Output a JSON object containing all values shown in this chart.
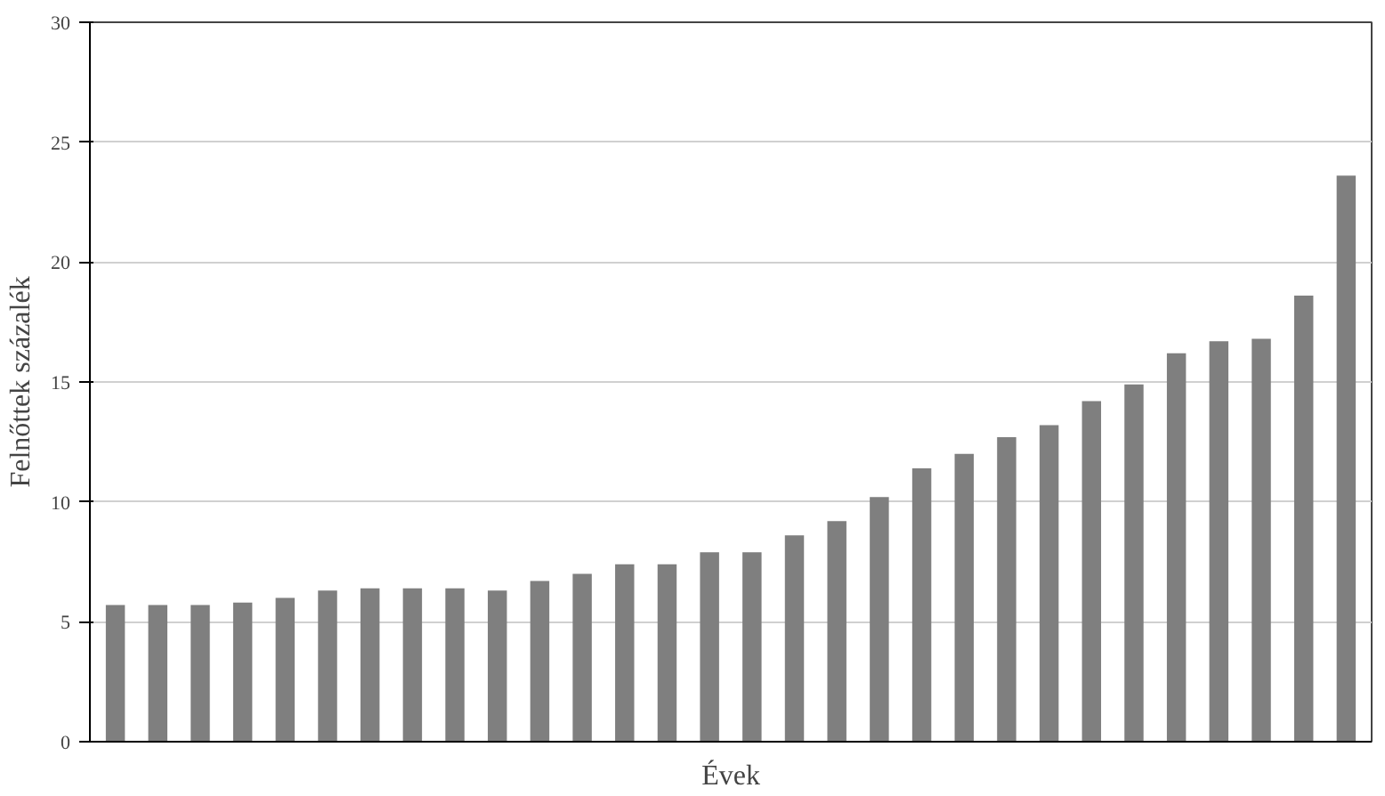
{
  "chart_data": {
    "type": "bar",
    "xlabel": "Évek",
    "ylabel": "Felnőttek százalék",
    "categories": [
      null,
      null,
      null,
      null,
      null,
      null,
      null,
      null,
      null,
      null,
      null,
      null,
      null,
      null,
      null,
      null,
      null,
      null,
      null,
      null,
      null,
      null,
      null,
      null,
      null,
      null,
      null,
      null,
      null,
      null
    ],
    "values": [
      5.7,
      5.7,
      5.7,
      5.8,
      6.0,
      6.3,
      6.4,
      6.4,
      6.4,
      6.3,
      6.7,
      7.0,
      7.4,
      7.4,
      7.9,
      7.9,
      8.6,
      9.2,
      10.2,
      11.4,
      12.0,
      12.7,
      13.2,
      14.2,
      14.9,
      16.2,
      16.7,
      16.8,
      18.6,
      23.6
    ],
    "color": "#7f7f7f",
    "ylim": [
      0,
      30
    ],
    "yticks": [
      0,
      5,
      10,
      15,
      20,
      25,
      30
    ],
    "grid": "y"
  }
}
